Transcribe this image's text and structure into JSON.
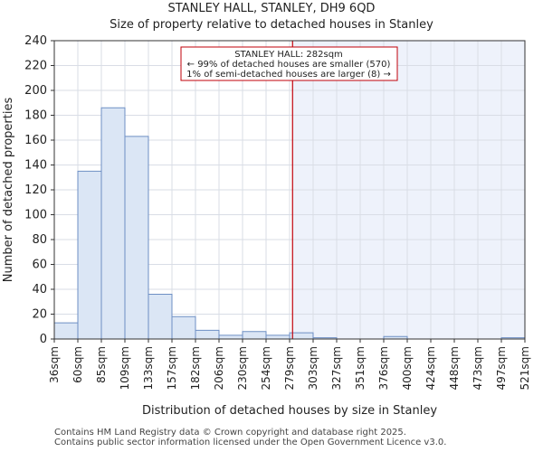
{
  "chart_data": {
    "type": "bar",
    "title": "STANLEY HALL, STANLEY, DH9 6QD",
    "subtitle": "Size of property relative to detached houses in Stanley",
    "xlabel": "Distribution of detached houses by size in Stanley",
    "ylabel": "Number of detached properties",
    "ylim": [
      0,
      240
    ],
    "yticks": [
      0,
      20,
      40,
      60,
      80,
      100,
      120,
      140,
      160,
      180,
      200,
      220,
      240
    ],
    "bin_edges": [
      36,
      60,
      85,
      109,
      133,
      157,
      182,
      206,
      230,
      254,
      279,
      303,
      327,
      351,
      376,
      400,
      424,
      448,
      473,
      497,
      521
    ],
    "tick_labels": [
      "36sqm",
      "60sqm",
      "85sqm",
      "109sqm",
      "133sqm",
      "157sqm",
      "182sqm",
      "206sqm",
      "230sqm",
      "254sqm",
      "279sqm",
      "303sqm",
      "327sqm",
      "351sqm",
      "376sqm",
      "400sqm",
      "424sqm",
      "448sqm",
      "473sqm",
      "497sqm",
      "521sqm"
    ],
    "values": [
      13,
      135,
      186,
      163,
      36,
      18,
      7,
      3,
      6,
      3,
      5,
      1,
      0,
      0,
      2,
      0,
      0,
      0,
      0,
      1
    ],
    "marker_value": 282,
    "marker_color": "#c0000a",
    "bar_fill": "#dbe6f5",
    "bar_stroke": "#6e8fc4",
    "shade_fill": "#eef2fb",
    "grid": true,
    "annotation": {
      "line1": "STANLEY HALL: 282sqm",
      "line2": "← 99% of detached houses are smaller (570)",
      "line3": "1% of semi-detached houses are larger (8) →"
    }
  },
  "footer": {
    "line1": "Contains HM Land Registry data © Crown copyright and database right 2025.",
    "line2": "Contains public sector information licensed under the Open Government Licence v3.0."
  }
}
